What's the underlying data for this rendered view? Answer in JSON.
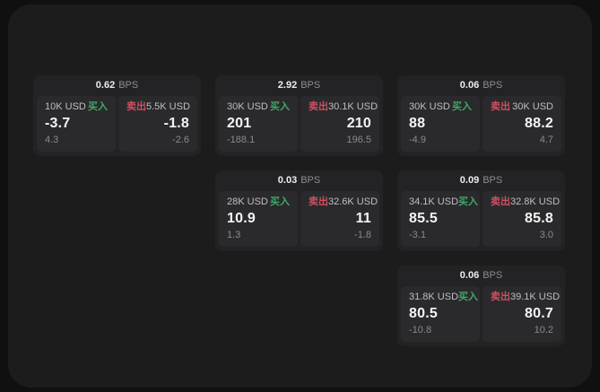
{
  "labels": {
    "bps_unit": "BPS",
    "buy": "买入",
    "sell": "卖出"
  },
  "colors": {
    "page_bg": "#101011",
    "panel_bg": "#1c1c1d",
    "card_bg": "#232325",
    "tile_bg": "#2a2a2c",
    "buy_green": "#3fa868",
    "sell_red": "#cf4f60"
  },
  "cards": [
    {
      "bps": "0.62",
      "buy": {
        "amount": "10K USD",
        "value": "-3.7",
        "delta": "4.3"
      },
      "sell": {
        "amount": "5.5K USD",
        "value": "-1.8",
        "delta": "-2.6"
      }
    },
    {
      "bps": "2.92",
      "buy": {
        "amount": "30K USD",
        "value": "201",
        "delta": "-188.1"
      },
      "sell": {
        "amount": "30.1K USD",
        "value": "210",
        "delta": "196.5"
      }
    },
    {
      "bps": "0.06",
      "buy": {
        "amount": "30K USD",
        "value": "88",
        "delta": "-4.9"
      },
      "sell": {
        "amount": "30K USD",
        "value": "88.2",
        "delta": "4.7"
      }
    },
    {
      "bps": "0.03",
      "buy": {
        "amount": "28K USD",
        "value": "10.9",
        "delta": "1.3"
      },
      "sell": {
        "amount": "32.6K USD",
        "value": "11",
        "delta": "-1.8"
      }
    },
    {
      "bps": "0.09",
      "buy": {
        "amount": "34.1K USD",
        "value": "85.5",
        "delta": "-3.1"
      },
      "sell": {
        "amount": "32.8K USD",
        "value": "85.8",
        "delta": "3.0"
      }
    },
    {
      "bps": "0.06",
      "buy": {
        "amount": "31.8K USD",
        "value": "80.5",
        "delta": "-10.8"
      },
      "sell": {
        "amount": "39.1K USD",
        "value": "80.7",
        "delta": "10.2"
      }
    }
  ]
}
